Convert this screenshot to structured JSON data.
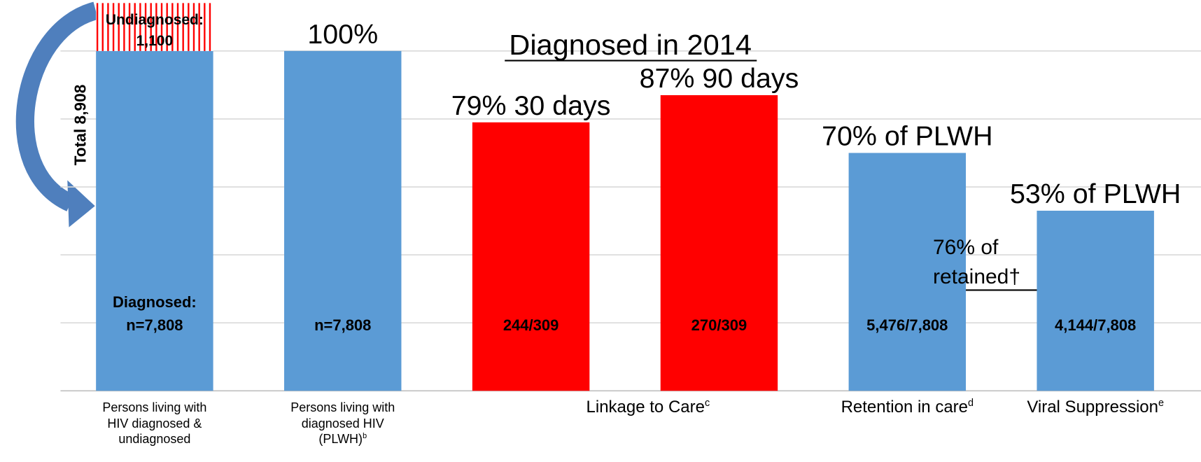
{
  "chart_data": {
    "type": "bar",
    "title": "Diagnosed in 2014",
    "categories": [
      "Persons living with\nHIV diagnosed &\nundiagnosed",
      "Persons living with\ndiagnosed HIV\n(PLWH)",
      null,
      null,
      "Retention in care",
      "Viral Suppression"
    ],
    "category_superscripts": [
      null,
      "b",
      null,
      null,
      "d",
      "e"
    ],
    "group_label": {
      "text": "Linkage to Care",
      "sup": "c",
      "bars": [
        2,
        3
      ]
    },
    "values": [
      100,
      100,
      79,
      87,
      70,
      53
    ],
    "value_labels": [
      null,
      "100%",
      "79% 30 days",
      "87% 90 days",
      "70% of PLWH",
      "53% of PLWH"
    ],
    "colors": [
      "#5b9bd5",
      "#5b9bd5",
      "#ff0000",
      "#ff0000",
      "#5b9bd5",
      "#5b9bd5"
    ],
    "count_labels": [
      "Diagnosed:\nn=7,808",
      "n=7,808",
      "244/309",
      "270/309",
      "5,476/7,808",
      "4,144/7,808"
    ],
    "stack": {
      "values": [
        14.1,
        null,
        null,
        null,
        null,
        null
      ],
      "color": "#ff0000",
      "label": "Undiagnosed:\n1,100"
    },
    "side_label": "Total 8,908",
    "arrow_note": "76% of\nretained†",
    "ylim": [
      0,
      115
    ],
    "grid_lines": [
      0,
      20,
      40,
      60,
      80,
      100
    ]
  }
}
